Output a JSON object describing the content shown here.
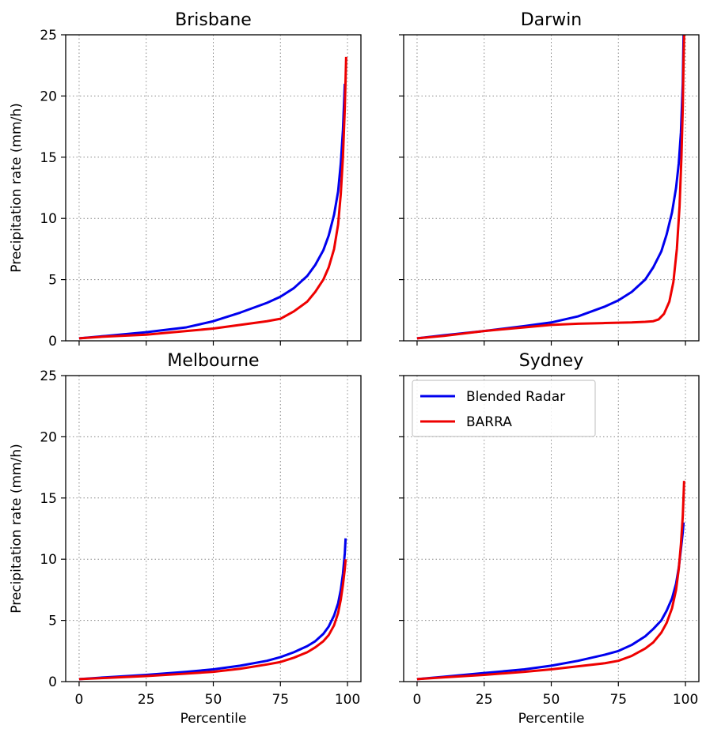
{
  "colors": {
    "blended": "#0000ee",
    "barra": "#ee0000",
    "grid": "#8a8a8a",
    "axis": "#000000"
  },
  "legend": {
    "items": [
      "Blended Radar",
      "BARRA"
    ],
    "panel": "Sydney",
    "location": "upper-left"
  },
  "chart_data": [
    {
      "type": "line",
      "title": "Brisbane",
      "xlabel": "",
      "ylabel": "Precipitation rate (mm/h)",
      "xlim": [
        -5,
        105
      ],
      "ylim": [
        0,
        25
      ],
      "xticks": [
        "0",
        "25",
        "50",
        "75",
        "100"
      ],
      "show_xticklabels": false,
      "yticks": [
        "0",
        "5",
        "10",
        "15",
        "20",
        "25"
      ],
      "show_yticklabels": true,
      "grid": true,
      "series": [
        {
          "name": "Blended Radar",
          "color": "#0000ee",
          "points": [
            [
              0,
              0.2
            ],
            [
              10,
              0.4
            ],
            [
              25,
              0.7
            ],
            [
              40,
              1.1
            ],
            [
              50,
              1.6
            ],
            [
              60,
              2.3
            ],
            [
              70,
              3.1
            ],
            [
              75,
              3.6
            ],
            [
              80,
              4.3
            ],
            [
              85,
              5.3
            ],
            [
              88,
              6.2
            ],
            [
              91,
              7.4
            ],
            [
              93,
              8.6
            ],
            [
              95,
              10.3
            ],
            [
              96.5,
              12.2
            ],
            [
              97.5,
              14.5
            ],
            [
              98.3,
              17.2
            ],
            [
              99,
              21.0
            ]
          ]
        },
        {
          "name": "BARRA",
          "color": "#ee0000",
          "points": [
            [
              0,
              0.2
            ],
            [
              10,
              0.35
            ],
            [
              25,
              0.5
            ],
            [
              40,
              0.8
            ],
            [
              50,
              1.0
            ],
            [
              60,
              1.3
            ],
            [
              70,
              1.6
            ],
            [
              75,
              1.8
            ],
            [
              80,
              2.4
            ],
            [
              85,
              3.2
            ],
            [
              88,
              4.0
            ],
            [
              91,
              5.0
            ],
            [
              93,
              6.0
            ],
            [
              95,
              7.5
            ],
            [
              96.5,
              9.5
            ],
            [
              97.5,
              12.0
            ],
            [
              98.3,
              15.0
            ],
            [
              99,
              19.0
            ],
            [
              99.3,
              21.5
            ],
            [
              99.5,
              23.2
            ]
          ]
        }
      ]
    },
    {
      "type": "line",
      "title": "Darwin",
      "xlabel": "",
      "ylabel": "",
      "xlim": [
        -5,
        105
      ],
      "ylim": [
        0,
        25
      ],
      "xticks": [
        "0",
        "25",
        "50",
        "75",
        "100"
      ],
      "show_xticklabels": false,
      "yticks": [
        "0",
        "5",
        "10",
        "15",
        "20",
        "25"
      ],
      "show_yticklabels": false,
      "grid": true,
      "series": [
        {
          "name": "Blended Radar",
          "color": "#0000ee",
          "points": [
            [
              0,
              0.2
            ],
            [
              10,
              0.45
            ],
            [
              25,
              0.8
            ],
            [
              40,
              1.2
            ],
            [
              50,
              1.5
            ],
            [
              60,
              2.0
            ],
            [
              70,
              2.8
            ],
            [
              75,
              3.3
            ],
            [
              80,
              4.0
            ],
            [
              85,
              5.0
            ],
            [
              88,
              6.0
            ],
            [
              91,
              7.3
            ],
            [
              93,
              8.7
            ],
            [
              95,
              10.5
            ],
            [
              96.5,
              12.5
            ],
            [
              97.5,
              14.5
            ],
            [
              98.3,
              17.0
            ],
            [
              99,
              21.0
            ],
            [
              99.3,
              25.0
            ]
          ]
        },
        {
          "name": "BARRA",
          "color": "#ee0000",
          "points": [
            [
              0,
              0.2
            ],
            [
              10,
              0.4
            ],
            [
              25,
              0.8
            ],
            [
              40,
              1.1
            ],
            [
              50,
              1.3
            ],
            [
              60,
              1.4
            ],
            [
              70,
              1.45
            ],
            [
              80,
              1.5
            ],
            [
              85,
              1.55
            ],
            [
              88,
              1.6
            ],
            [
              90,
              1.75
            ],
            [
              92,
              2.2
            ],
            [
              94,
              3.2
            ],
            [
              95.5,
              4.8
            ],
            [
              96.8,
              7.5
            ],
            [
              97.8,
              11.0
            ],
            [
              98.5,
              15.0
            ],
            [
              99,
              19.0
            ],
            [
              99.3,
              23.0
            ],
            [
              99.5,
              25.0
            ]
          ]
        }
      ]
    },
    {
      "type": "line",
      "title": "Melbourne",
      "xlabel": "Percentile",
      "ylabel": "Precipitation rate (mm/h)",
      "xlim": [
        -5,
        105
      ],
      "ylim": [
        0,
        25
      ],
      "xticks": [
        "0",
        "25",
        "50",
        "75",
        "100"
      ],
      "show_xticklabels": true,
      "yticks": [
        "0",
        "5",
        "10",
        "15",
        "20",
        "25"
      ],
      "show_yticklabels": true,
      "grid": true,
      "series": [
        {
          "name": "Blended Radar",
          "color": "#0000ee",
          "points": [
            [
              0,
              0.2
            ],
            [
              10,
              0.35
            ],
            [
              25,
              0.55
            ],
            [
              40,
              0.8
            ],
            [
              50,
              1.0
            ],
            [
              60,
              1.3
            ],
            [
              70,
              1.7
            ],
            [
              75,
              2.0
            ],
            [
              80,
              2.4
            ],
            [
              85,
              2.9
            ],
            [
              88,
              3.3
            ],
            [
              91,
              3.9
            ],
            [
              93,
              4.5
            ],
            [
              95,
              5.4
            ],
            [
              96.5,
              6.4
            ],
            [
              97.5,
              7.5
            ],
            [
              98.3,
              8.8
            ],
            [
              99,
              10.5
            ],
            [
              99.3,
              11.7
            ]
          ]
        },
        {
          "name": "BARRA",
          "color": "#ee0000",
          "points": [
            [
              0,
              0.2
            ],
            [
              10,
              0.3
            ],
            [
              25,
              0.45
            ],
            [
              40,
              0.65
            ],
            [
              50,
              0.8
            ],
            [
              60,
              1.05
            ],
            [
              70,
              1.4
            ],
            [
              75,
              1.6
            ],
            [
              80,
              1.95
            ],
            [
              85,
              2.4
            ],
            [
              88,
              2.8
            ],
            [
              91,
              3.3
            ],
            [
              93,
              3.8
            ],
            [
              95,
              4.6
            ],
            [
              96.5,
              5.6
            ],
            [
              97.5,
              6.7
            ],
            [
              98.3,
              7.9
            ],
            [
              99,
              9.2
            ],
            [
              99.3,
              10.0
            ]
          ]
        }
      ]
    },
    {
      "type": "line",
      "title": "Sydney",
      "xlabel": "Percentile",
      "ylabel": "",
      "xlim": [
        -5,
        105
      ],
      "ylim": [
        0,
        25
      ],
      "xticks": [
        "0",
        "25",
        "50",
        "75",
        "100"
      ],
      "show_xticklabels": true,
      "yticks": [
        "0",
        "5",
        "10",
        "15",
        "20",
        "25"
      ],
      "show_yticklabels": false,
      "grid": true,
      "series": [
        {
          "name": "Blended Radar",
          "color": "#0000ee",
          "points": [
            [
              0,
              0.2
            ],
            [
              10,
              0.4
            ],
            [
              25,
              0.7
            ],
            [
              40,
              1.0
            ],
            [
              50,
              1.3
            ],
            [
              60,
              1.7
            ],
            [
              70,
              2.2
            ],
            [
              75,
              2.5
            ],
            [
              80,
              3.0
            ],
            [
              85,
              3.7
            ],
            [
              88,
              4.3
            ],
            [
              91,
              5.0
            ],
            [
              93,
              5.8
            ],
            [
              95,
              6.8
            ],
            [
              96.5,
              8.0
            ],
            [
              97.5,
              9.3
            ],
            [
              98.3,
              10.8
            ],
            [
              99,
              12.2
            ],
            [
              99.3,
              13.0
            ]
          ]
        },
        {
          "name": "BARRA",
          "color": "#ee0000",
          "points": [
            [
              0,
              0.2
            ],
            [
              10,
              0.35
            ],
            [
              25,
              0.55
            ],
            [
              40,
              0.8
            ],
            [
              50,
              1.0
            ],
            [
              60,
              1.25
            ],
            [
              70,
              1.5
            ],
            [
              75,
              1.7
            ],
            [
              80,
              2.1
            ],
            [
              85,
              2.7
            ],
            [
              88,
              3.2
            ],
            [
              91,
              4.0
            ],
            [
              93,
              4.8
            ],
            [
              95,
              6.0
            ],
            [
              96.5,
              7.5
            ],
            [
              97.5,
              9.2
            ],
            [
              98.3,
              11.2
            ],
            [
              99,
              13.5
            ],
            [
              99.3,
              15.2
            ],
            [
              99.5,
              16.4
            ]
          ]
        }
      ]
    }
  ]
}
